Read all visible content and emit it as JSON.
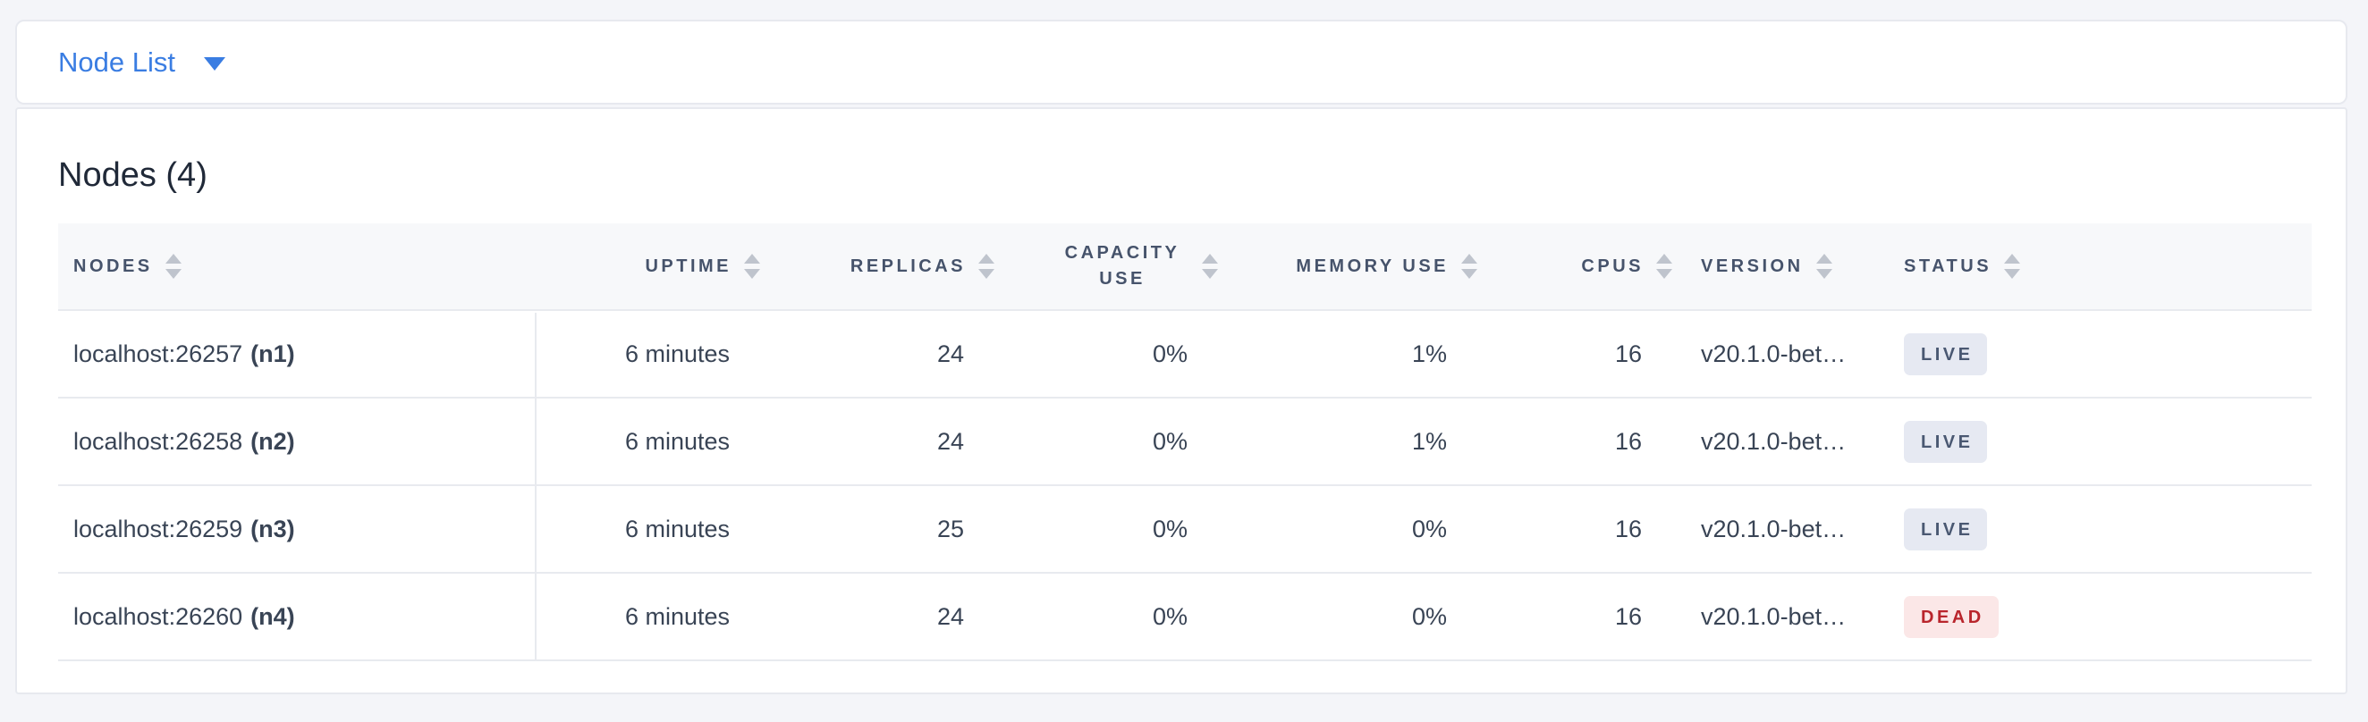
{
  "toolbar": {
    "dropdown_label": "Node List"
  },
  "panel": {
    "title": "Nodes (4)"
  },
  "table": {
    "columns": [
      {
        "label": "NODES"
      },
      {
        "label": "UPTIME"
      },
      {
        "label": "REPLICAS"
      },
      {
        "label": "CAPACITY USE"
      },
      {
        "label": "MEMORY USE"
      },
      {
        "label": "CPUS"
      },
      {
        "label": "VERSION"
      },
      {
        "label": "STATUS"
      }
    ],
    "rows": [
      {
        "address": "localhost:26257",
        "name": "(n1)",
        "uptime": "6 minutes",
        "replicas": "24",
        "capacity_use": "0%",
        "memory_use": "1%",
        "cpus": "16",
        "version": "v20.1.0-bet…",
        "status": "LIVE"
      },
      {
        "address": "localhost:26258",
        "name": "(n2)",
        "uptime": "6 minutes",
        "replicas": "24",
        "capacity_use": "0%",
        "memory_use": "1%",
        "cpus": "16",
        "version": "v20.1.0-bet…",
        "status": "LIVE"
      },
      {
        "address": "localhost:26259",
        "name": "(n3)",
        "uptime": "6 minutes",
        "replicas": "25",
        "capacity_use": "0%",
        "memory_use": "0%",
        "cpus": "16",
        "version": "v20.1.0-bet…",
        "status": "LIVE"
      },
      {
        "address": "localhost:26260",
        "name": "(n4)",
        "uptime": "6 minutes",
        "replicas": "24",
        "capacity_use": "0%",
        "memory_use": "0%",
        "cpus": "16",
        "version": "v20.1.0-bet…",
        "status": "DEAD"
      }
    ]
  },
  "colors": {
    "accent_blue": "#3a7de2",
    "live_badge_bg": "#e6e9f2",
    "live_badge_text": "#4a5872",
    "dead_badge_bg": "#fbe7e7",
    "dead_badge_text": "#b9252c",
    "header_text": "#46536b",
    "page_background": "#f4f5f9"
  }
}
